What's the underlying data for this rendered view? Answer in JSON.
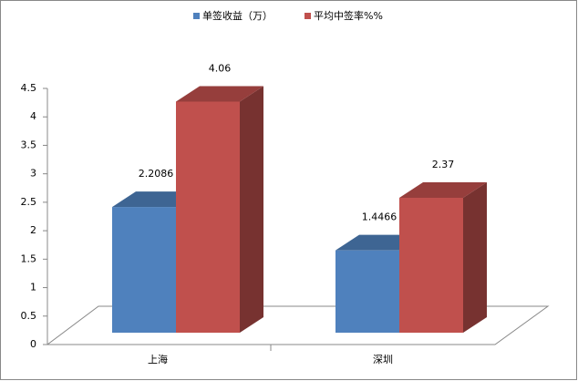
{
  "chart_data": {
    "type": "bar3d",
    "categories": [
      "上海",
      "深圳"
    ],
    "series": [
      {
        "name": "单签收益（万）",
        "color": "#4f81bd",
        "values": [
          2.2086,
          1.4466
        ]
      },
      {
        "name": "平均中签率%%",
        "color": "#c0504d",
        "values": [
          4.06,
          2.37
        ]
      }
    ],
    "ylim": [
      0,
      4.5
    ],
    "yticks": [
      0,
      0.5,
      1,
      1.5,
      2,
      2.5,
      3,
      3.5,
      4,
      4.5
    ],
    "legend": "top"
  }
}
